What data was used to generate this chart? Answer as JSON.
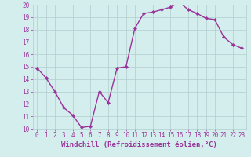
{
  "x": [
    0,
    1,
    2,
    3,
    4,
    5,
    6,
    7,
    8,
    9,
    10,
    11,
    12,
    13,
    14,
    15,
    16,
    17,
    18,
    19,
    20,
    21,
    22,
    23
  ],
  "y": [
    14.9,
    14.1,
    13.0,
    11.7,
    11.1,
    10.1,
    10.2,
    13.0,
    12.1,
    14.9,
    15.0,
    18.1,
    19.3,
    19.4,
    19.6,
    19.8,
    20.2,
    19.6,
    19.3,
    18.9,
    18.8,
    17.4,
    16.8,
    16.5
  ],
  "line_color": "#993399",
  "marker": "D",
  "marker_size": 2.2,
  "linewidth": 1.0,
  "xlabel": "Windchill (Refroidissement éolien,°C)",
  "xlabel_fontsize": 6.5,
  "ylim": [
    10,
    20
  ],
  "xlim": [
    -0.5,
    23.5
  ],
  "yticks": [
    10,
    11,
    12,
    13,
    14,
    15,
    16,
    17,
    18,
    19,
    20
  ],
  "xticks": [
    0,
    1,
    2,
    3,
    4,
    5,
    6,
    7,
    8,
    9,
    10,
    11,
    12,
    13,
    14,
    15,
    16,
    17,
    18,
    19,
    20,
    21,
    22,
    23
  ],
  "background_color": "#d4eeed",
  "grid_color": "#b0cccc",
  "tick_fontsize": 5.5,
  "tick_color": "#993399"
}
